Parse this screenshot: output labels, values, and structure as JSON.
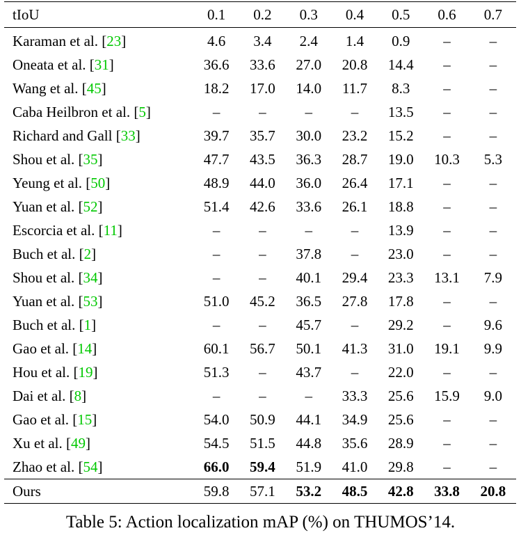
{
  "table": {
    "header": [
      "tIoU",
      "0.1",
      "0.2",
      "0.3",
      "0.4",
      "0.5",
      "0.6",
      "0.7"
    ],
    "rows": [
      {
        "method": "Karaman et al. [",
        "ref": "23",
        "close": "]",
        "values": [
          "4.6",
          "3.4",
          "2.4",
          "1.4",
          "0.9",
          "–",
          "–"
        ],
        "bold": []
      },
      {
        "method": "Oneata et al. [",
        "ref": "31",
        "close": "]",
        "values": [
          "36.6",
          "33.6",
          "27.0",
          "20.8",
          "14.4",
          "–",
          "–"
        ],
        "bold": []
      },
      {
        "method": "Wang et al. [",
        "ref": "45",
        "close": "]",
        "values": [
          "18.2",
          "17.0",
          "14.0",
          "11.7",
          "8.3",
          "–",
          "–"
        ],
        "bold": []
      },
      {
        "method": "Caba Heilbron et al. [",
        "ref": "5",
        "close": "]",
        "values": [
          "–",
          "–",
          "–",
          "–",
          "13.5",
          "–",
          "–"
        ],
        "bold": []
      },
      {
        "method": "Richard and Gall [",
        "ref": "33",
        "close": "]",
        "values": [
          "39.7",
          "35.7",
          "30.0",
          "23.2",
          "15.2",
          "–",
          "–"
        ],
        "bold": []
      },
      {
        "method": "Shou et al. [",
        "ref": "35",
        "close": "]",
        "values": [
          "47.7",
          "43.5",
          "36.3",
          "28.7",
          "19.0",
          "10.3",
          "5.3"
        ],
        "bold": []
      },
      {
        "method": "Yeung et al. [",
        "ref": "50",
        "close": "]",
        "values": [
          "48.9",
          "44.0",
          "36.0",
          "26.4",
          "17.1",
          "–",
          "–"
        ],
        "bold": []
      },
      {
        "method": "Yuan et al. [",
        "ref": "52",
        "close": "]",
        "values": [
          "51.4",
          "42.6",
          "33.6",
          "26.1",
          "18.8",
          "–",
          "–"
        ],
        "bold": []
      },
      {
        "method": "Escorcia et al. [",
        "ref": "11",
        "close": "]",
        "values": [
          "–",
          "–",
          "–",
          "–",
          "13.9",
          "–",
          "–"
        ],
        "bold": []
      },
      {
        "method": "Buch et al. [",
        "ref": "2",
        "close": "]",
        "values": [
          "–",
          "–",
          "37.8",
          "–",
          "23.0",
          "–",
          "–"
        ],
        "bold": []
      },
      {
        "method": "Shou et al. [",
        "ref": "34",
        "close": "]",
        "values": [
          "–",
          "–",
          "40.1",
          "29.4",
          "23.3",
          "13.1",
          "7.9"
        ],
        "bold": []
      },
      {
        "method": "Yuan et al. [",
        "ref": "53",
        "close": "]",
        "values": [
          "51.0",
          "45.2",
          "36.5",
          "27.8",
          "17.8",
          "–",
          "–"
        ],
        "bold": []
      },
      {
        "method": "Buch et al. [",
        "ref": "1",
        "close": "]",
        "values": [
          "–",
          "–",
          "45.7",
          "–",
          "29.2",
          "–",
          "9.6"
        ],
        "bold": []
      },
      {
        "method": "Gao et al. [",
        "ref": "14",
        "close": "]",
        "values": [
          "60.1",
          "56.7",
          "50.1",
          "41.3",
          "31.0",
          "19.1",
          "9.9"
        ],
        "bold": []
      },
      {
        "method": "Hou et al. [",
        "ref": "19",
        "close": "]",
        "values": [
          "51.3",
          "–",
          "43.7",
          "–",
          "22.0",
          "–",
          "–"
        ],
        "bold": []
      },
      {
        "method": "Dai et al. [",
        "ref": "8",
        "close": "]",
        "values": [
          "–",
          "–",
          "–",
          "33.3",
          "25.6",
          "15.9",
          "9.0"
        ],
        "bold": []
      },
      {
        "method": "Gao et al. [",
        "ref": "15",
        "close": "]",
        "values": [
          "54.0",
          "50.9",
          "44.1",
          "34.9",
          "25.6",
          "–",
          "–"
        ],
        "bold": []
      },
      {
        "method": "Xu et al. [",
        "ref": "49",
        "close": "]",
        "values": [
          "54.5",
          "51.5",
          "44.8",
          "35.6",
          "28.9",
          "–",
          "–"
        ],
        "bold": []
      },
      {
        "method": "Zhao et al. [",
        "ref": "54",
        "close": "]",
        "values": [
          "66.0",
          "59.4",
          "51.9",
          "41.0",
          "29.8",
          "–",
          "–"
        ],
        "bold": [
          0,
          1
        ]
      }
    ],
    "ours": {
      "method": "Ours",
      "values": [
        "59.8",
        "57.1",
        "53.2",
        "48.5",
        "42.8",
        "33.8",
        "20.8"
      ],
      "bold": [
        2,
        3,
        4,
        5,
        6
      ]
    }
  },
  "caption": {
    "label": "Table 5:",
    "text": "Action localization mAP (%) on THUMOS’14."
  }
}
